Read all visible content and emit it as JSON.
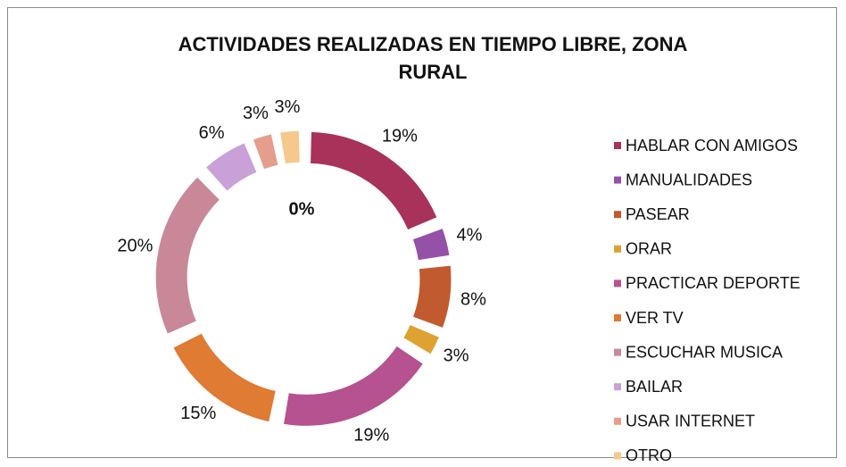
{
  "chart_data": {
    "type": "pie",
    "title": "ACTIVIDADES REALIZADAS EN TIEMPO LIBRE, ZONA RURAL",
    "categories": [
      "HABLAR CON AMIGOS",
      "MANUALIDADES",
      "PASEAR",
      "ORAR",
      "PRACTICAR DEPORTE",
      "VER TV",
      "ESCUCHAR MUSICA",
      "BAILAR",
      "USAR INTERNET",
      "OTRO"
    ],
    "values": [
      19,
      4,
      8,
      3,
      19,
      15,
      20,
      6,
      3,
      3
    ],
    "value_labels": [
      "19%",
      "4%",
      "8%",
      "3%",
      "19%",
      "15%",
      "20%",
      "6%",
      "3%",
      "3%"
    ],
    "colors": [
      "#a8325a",
      "#9550a8",
      "#c15a2e",
      "#dea232",
      "#b5528f",
      "#df7b32",
      "#c98898",
      "#c9a0d8",
      "#e59e8c",
      "#f6c88c"
    ],
    "annotation": "0%",
    "donut": true,
    "legend": "right"
  }
}
